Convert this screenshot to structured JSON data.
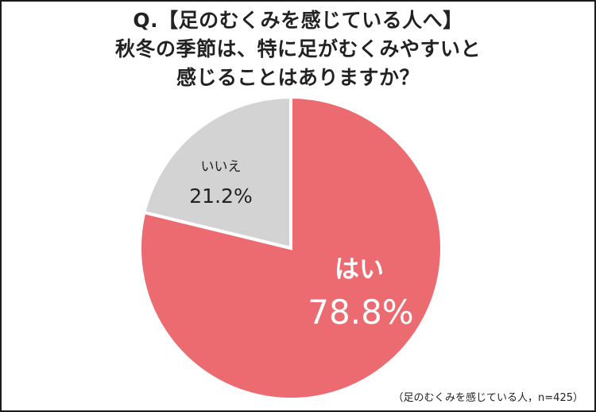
{
  "title_lines": [
    "Q.【足のむくみを感じている人へ】",
    "秋冬の季節は、特に足がむくみやすいと",
    "感じることはありますか？"
  ],
  "note": "（足のむくみを感じている人，n=425）",
  "colors": {
    "yes": "#EC6B70",
    "no": "#D3D3D3",
    "text_dark": "#222222",
    "text_light": "#ffffff"
  },
  "chart_data": {
    "type": "pie",
    "slices": [
      {
        "label": "はい",
        "value": 78.8,
        "value_label": "78.8%",
        "color": "#EC6B70"
      },
      {
        "label": "いいえ",
        "value": 21.2,
        "value_label": "21.2%",
        "color": "#D3D3D3"
      }
    ],
    "n": 425
  }
}
